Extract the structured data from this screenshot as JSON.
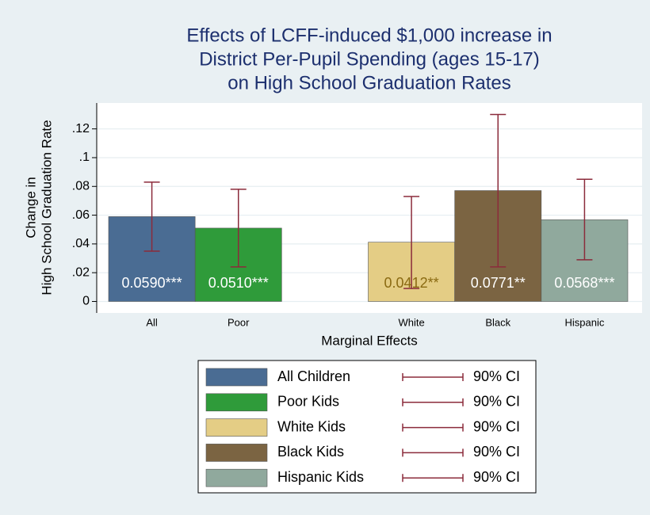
{
  "chart_data": {
    "type": "bar",
    "title": [
      "Effects of LCFF-induced $1,000 increase in",
      "District Per-Pupil Spending (ages 15-17)",
      "on High School Graduation Rates"
    ],
    "x_label": "Marginal Effects",
    "y_label": [
      "Change in",
      "High School Graduation Rate"
    ],
    "categories": [
      "All",
      "Poor",
      null,
      "White",
      "Black",
      "Hispanic"
    ],
    "ylim": [
      -0.008,
      0.138
    ],
    "yticks": [
      0,
      {
        "value": 0.02,
        "label": ".02"
      },
      {
        "value": 0.04,
        "label": ".04"
      },
      {
        "value": 0.06,
        "label": ".06"
      },
      {
        "value": 0.08,
        "label": ".08"
      },
      {
        "value": 0.1,
        "label": ".1"
      },
      {
        "value": 0.12,
        "label": ".12"
      }
    ],
    "grid": true,
    "legend": "bottom",
    "ci_label": "90% CI",
    "ci_color": "#8b2b3b",
    "series": [
      {
        "name": "All Children",
        "color": "#4a6c93",
        "label_color": "#ffffff",
        "values": [
          0.059,
          null,
          null,
          null,
          null,
          null
        ],
        "value_labels": [
          "0.0590***",
          null,
          null,
          null,
          null,
          null
        ],
        "ci_low": [
          0.035,
          null,
          null,
          null,
          null,
          null
        ],
        "ci_high": [
          0.083,
          null,
          null,
          null,
          null,
          null
        ]
      },
      {
        "name": "Poor Kids",
        "color": "#2f9b3a",
        "label_color": "#ffffff",
        "values": [
          null,
          0.051,
          null,
          null,
          null,
          null
        ],
        "value_labels": [
          null,
          "0.0510***",
          null,
          null,
          null,
          null
        ],
        "ci_low": [
          null,
          0.024,
          null,
          null,
          null,
          null
        ],
        "ci_high": [
          null,
          0.078,
          null,
          null,
          null,
          null
        ]
      },
      {
        "name": "White Kids",
        "color": "#e4cd85",
        "label_color": "#8a6a12",
        "values": [
          null,
          null,
          null,
          0.0412,
          null,
          null
        ],
        "value_labels": [
          null,
          null,
          null,
          "0.0412**",
          null,
          null
        ],
        "ci_low": [
          null,
          null,
          null,
          0.009,
          null,
          null
        ],
        "ci_high": [
          null,
          null,
          null,
          0.073,
          null,
          null
        ]
      },
      {
        "name": "Black Kids",
        "color": "#7b6442",
        "label_color": "#ffffff",
        "values": [
          null,
          null,
          null,
          null,
          0.0771,
          null
        ],
        "value_labels": [
          null,
          null,
          null,
          null,
          "0.0771**",
          null
        ],
        "ci_low": [
          null,
          null,
          null,
          null,
          0.024,
          null
        ],
        "ci_high": [
          null,
          null,
          null,
          null,
          0.13,
          null
        ]
      },
      {
        "name": "Hispanic Kids",
        "color": "#90a99d",
        "label_color": "#ffffff",
        "values": [
          null,
          null,
          null,
          null,
          null,
          0.0568
        ],
        "value_labels": [
          null,
          null,
          null,
          null,
          null,
          "0.0568***"
        ],
        "ci_low": [
          null,
          null,
          null,
          null,
          null,
          0.029
        ],
        "ci_high": [
          null,
          null,
          null,
          null,
          null,
          0.085
        ]
      }
    ]
  }
}
